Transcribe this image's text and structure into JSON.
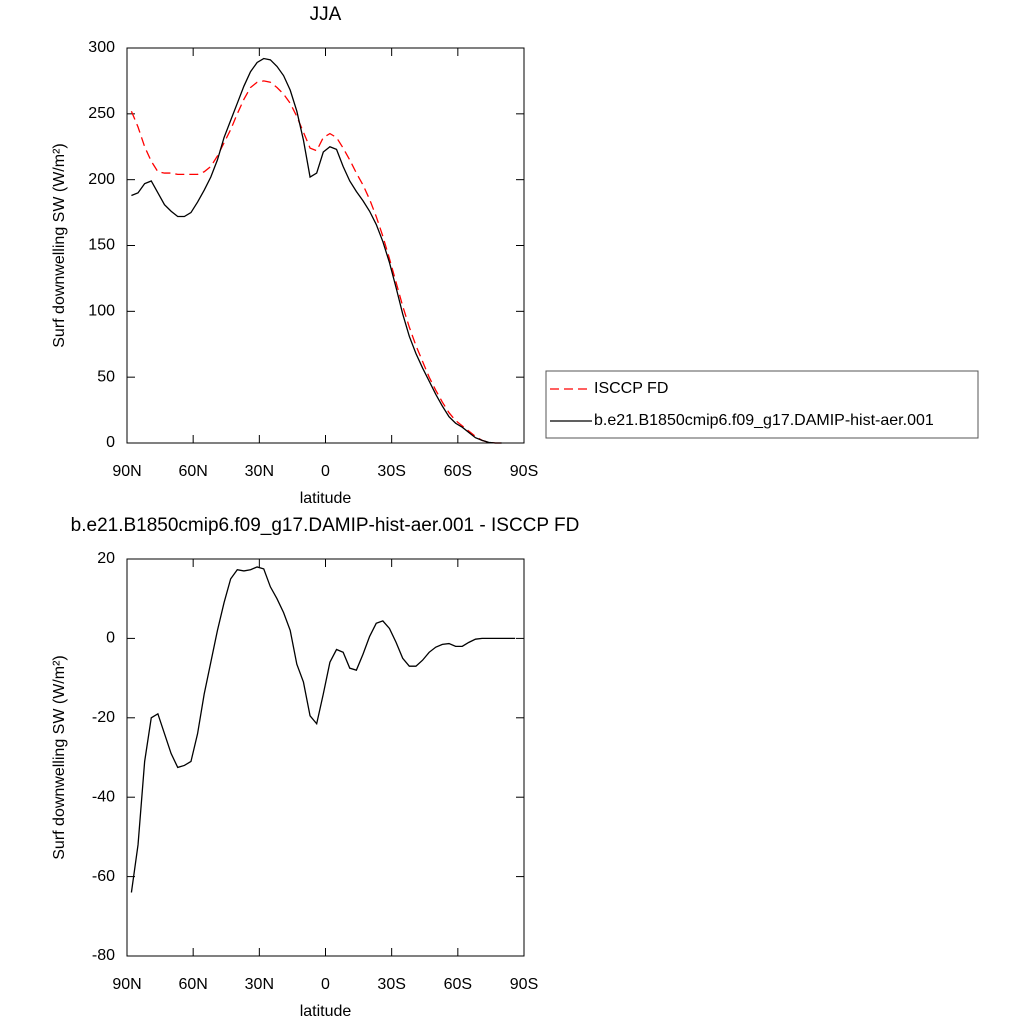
{
  "chart_data": [
    {
      "type": "line",
      "title": "JJA",
      "x_label": "latitude",
      "y_label": "Surf downwelling SW (W/m²)",
      "x": [
        88,
        85,
        82,
        79,
        76,
        73,
        70,
        67,
        64,
        61,
        58,
        55,
        52,
        49,
        46,
        43,
        40,
        37,
        34,
        31,
        28,
        25,
        22,
        19,
        16,
        13,
        10,
        7,
        4,
        1,
        -2,
        -5,
        -8,
        -11,
        -14,
        -17,
        -20,
        -23,
        -26,
        -29,
        -32,
        -35,
        -38,
        -41,
        -44,
        -47,
        -50,
        -53,
        -56,
        -59,
        -62,
        -65,
        -68,
        -71,
        -74,
        -77,
        -80
      ],
      "series": [
        {
          "name": "ISCCP FD",
          "color": "#ff0000",
          "dash": true,
          "values": [
            252,
            240,
            225,
            214,
            206,
            205,
            205,
            204,
            204,
            204,
            204,
            206,
            210,
            218,
            228,
            238,
            250,
            261,
            270,
            274,
            275,
            274,
            270,
            265,
            258,
            248,
            236,
            224,
            222,
            232,
            235,
            232,
            224,
            215,
            205,
            196,
            185,
            172,
            157,
            140,
            122,
            104,
            88,
            74,
            62,
            50,
            40,
            31,
            23,
            17,
            13,
            9,
            5,
            2,
            0.5,
            0,
            0
          ]
        },
        {
          "name": "b.e21.B1850cmip6.f09_g17.DAMIP-hist-aer.001",
          "color": "#000000",
          "dash": false,
          "values": [
            188,
            190,
            197,
            199,
            190,
            181,
            176,
            172,
            172,
            175,
            183,
            192,
            202,
            215,
            232,
            245,
            258,
            271,
            282,
            289,
            292,
            291,
            286,
            279,
            268,
            252,
            230,
            202,
            205,
            221,
            225,
            223,
            210,
            199,
            191,
            184,
            176,
            166,
            153,
            137,
            118,
            98,
            81,
            68,
            57,
            47,
            37,
            28,
            20,
            15,
            12,
            8,
            4,
            2,
            0.5,
            0,
            0
          ]
        }
      ],
      "xlim": [
        90,
        -90
      ],
      "xticks": [
        {
          "value": 90,
          "label": "90N"
        },
        {
          "value": 60,
          "label": "60N"
        },
        {
          "value": 30,
          "label": "30N"
        },
        0,
        {
          "value": -30,
          "label": "30S"
        },
        {
          "value": -60,
          "label": "60S"
        },
        {
          "value": -90,
          "label": "90S"
        }
      ],
      "ylim": [
        0,
        300
      ],
      "yticks": [
        0,
        50,
        100,
        150,
        200,
        250,
        300
      ],
      "legend": "outside-right"
    },
    {
      "type": "line",
      "title": "b.e21.B1850cmip6.f09_g17.DAMIP-hist-aer.001 - ISCCP FD",
      "x_label": "latitude",
      "y_label": "Surf downwelling SW (W/m²)",
      "x": [
        88,
        85,
        82,
        79,
        76,
        73,
        70,
        67,
        64,
        61,
        58,
        55,
        52,
        49,
        46,
        43,
        40,
        37,
        34,
        31,
        28,
        25,
        22,
        19,
        16,
        13,
        10,
        7,
        4,
        1,
        -2,
        -5,
        -8,
        -11,
        -14,
        -17,
        -20,
        -23,
        -26,
        -29,
        -32,
        -35,
        -38,
        -41,
        -44,
        -47,
        -50,
        -53,
        -56,
        -59,
        -62,
        -65,
        -68,
        -71,
        -74,
        -77,
        -80,
        -83,
        -86
      ],
      "series": [
        {
          "color": "#000000",
          "dash": false,
          "values": [
            -64,
            -52,
            -31,
            -20,
            -19,
            -24,
            -29,
            -32.5,
            -32,
            -31,
            -24,
            -14,
            -6,
            2,
            9,
            15,
            17.3,
            17,
            17.3,
            18,
            17.5,
            13,
            10,
            6.5,
            2,
            -6.5,
            -11,
            -19.5,
            -21.5,
            -14,
            -6,
            -2.8,
            -3.5,
            -7.5,
            -8,
            -4,
            0.5,
            3.8,
            4.4,
            2.5,
            -1,
            -5,
            -7,
            -7,
            -5.5,
            -3.5,
            -2.2,
            -1.5,
            -1.3,
            -2,
            -2,
            -1,
            -0.2,
            0,
            0,
            0,
            0,
            0,
            0
          ]
        }
      ],
      "xlim": [
        90,
        -90
      ],
      "xticks": [
        {
          "value": 90,
          "label": "90N"
        },
        {
          "value": 60,
          "label": "60N"
        },
        {
          "value": 30,
          "label": "30N"
        },
        0,
        {
          "value": -30,
          "label": "30S"
        },
        {
          "value": -60,
          "label": "60S"
        },
        {
          "value": -90,
          "label": "90S"
        }
      ],
      "ylim": [
        -80,
        20
      ],
      "yticks": [
        -80,
        -60,
        -40,
        -20,
        0,
        20
      ]
    }
  ]
}
